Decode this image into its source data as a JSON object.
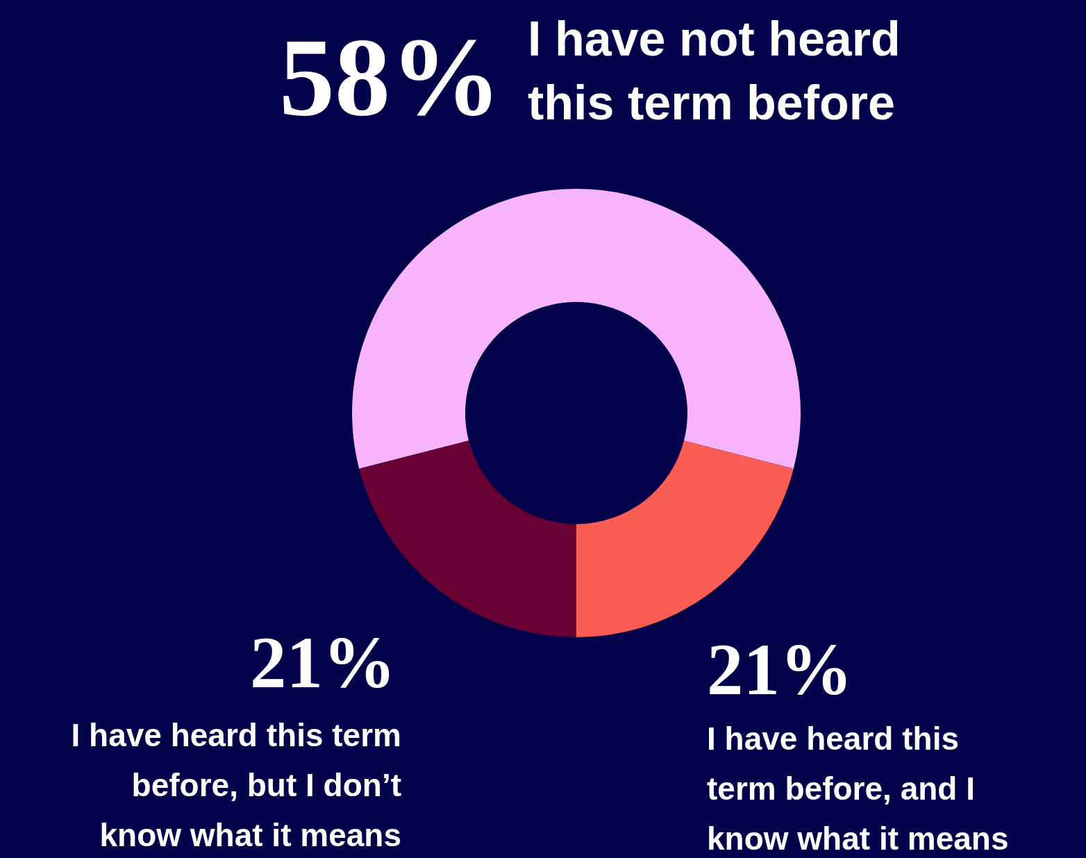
{
  "chart_data": {
    "type": "donut",
    "categories": [
      "I have not heard this term before",
      "I have heard this term before, and I know what it means",
      "I have heard this term before, but I don’t know what it means"
    ],
    "values": [
      58,
      21,
      21
    ],
    "colors": [
      "#f8b4fa",
      "#fb5c54",
      "#690032"
    ],
    "value_labels": [
      "58%",
      "21%",
      "21%"
    ]
  }
}
